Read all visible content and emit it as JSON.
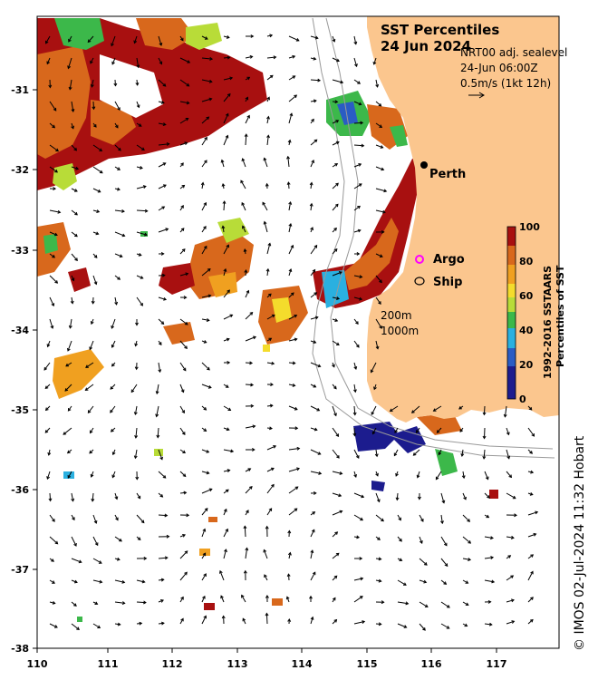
{
  "title": {
    "line1": "SST Percentiles",
    "line2": "24 Jun 2024"
  },
  "current_info": {
    "model": "NRT00 adj. sealevel",
    "time": "24-Jun 06:00Z",
    "scale": "0.5m/s (1kt 12h)"
  },
  "places": {
    "perth": "Perth",
    "argo": "Argo",
    "ship": "Ship"
  },
  "isobaths": {
    "shallow": "200m",
    "deep": "1000m"
  },
  "colorbar": {
    "label_line1": "1992-2016 SSTAARS",
    "label_line2": "Percentiles of SST",
    "ticks": [
      "0",
      "20",
      "40",
      "60",
      "80",
      "100"
    ],
    "colors": [
      "#1c1c8e",
      "#2a5cc4",
      "#2ab0e0",
      "#3cb84a",
      "#b8dc38",
      "#f4dc2c",
      "#f0a020",
      "#d8681c",
      "#a81010"
    ]
  },
  "credit": "© IMOS 02-Jul-2024 11:32 Hobart",
  "colors": {
    "land": "#fbc68e",
    "argo_marker": "#ff00ff",
    "isobath": "#999999"
  },
  "axes": {
    "x_ticks": [
      "110",
      "111",
      "112",
      "113",
      "114",
      "115",
      "116",
      "117"
    ],
    "y_ticks": [
      "-31",
      "-32",
      "-33",
      "-34",
      "-35",
      "-36",
      "-37",
      "-38"
    ],
    "lon_range": [
      110,
      118
    ],
    "lat_range": [
      -38,
      -30.2
    ]
  }
}
